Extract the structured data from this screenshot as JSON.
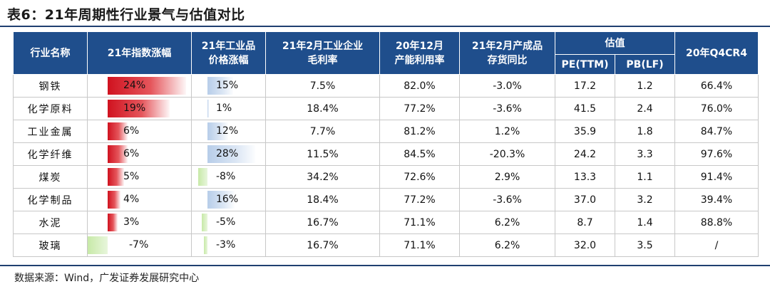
{
  "title": "表6：21年周期性行业景气与估值对比",
  "headers": {
    "industry": "行业名称",
    "index_change": "21年指数涨幅",
    "price_change_l1": "21年工业品",
    "price_change_l2": "价格涨幅",
    "margin_l1": "21年2月工业企业",
    "margin_l2": "毛利率",
    "capacity_l1": "20年12月",
    "capacity_l2": "产能利用率",
    "inventory_l1": "21年2月产成品",
    "inventory_l2": "存货同比",
    "valuation": "估值",
    "pe": "PE(TTM)",
    "pb": "PB(LF)",
    "cr4": "20年Q4CR4"
  },
  "rows": [
    {
      "name": "钢铁",
      "index": "24%",
      "index_v": 24,
      "price": "15%",
      "price_v": 15,
      "margin": "7.5%",
      "capacity": "82.0%",
      "inventory": "-3.0%",
      "pe": "17.2",
      "pb": "1.2",
      "cr4": "66.4%"
    },
    {
      "name": "化学原料",
      "index": "19%",
      "index_v": 19,
      "price": "1%",
      "price_v": 1,
      "margin": "18.4%",
      "capacity": "77.2%",
      "inventory": "-3.6%",
      "pe": "41.5",
      "pb": "2.4",
      "cr4": "76.0%"
    },
    {
      "name": "工业金属",
      "index": "6%",
      "index_v": 6,
      "price": "12%",
      "price_v": 12,
      "margin": "7.7%",
      "capacity": "81.2%",
      "inventory": "1.2%",
      "pe": "35.9",
      "pb": "1.8",
      "cr4": "84.7%"
    },
    {
      "name": "化学纤维",
      "index": "6%",
      "index_v": 6,
      "price": "28%",
      "price_v": 28,
      "margin": "11.5%",
      "capacity": "84.5%",
      "inventory": "-20.3%",
      "pe": "24.2",
      "pb": "3.3",
      "cr4": "97.6%"
    },
    {
      "name": "煤炭",
      "index": "5%",
      "index_v": 5,
      "price": "-8%",
      "price_v": -8,
      "margin": "34.2%",
      "capacity": "72.6%",
      "inventory": "2.9%",
      "pe": "13.3",
      "pb": "1.1",
      "cr4": "91.4%"
    },
    {
      "name": "化学制品",
      "index": "4%",
      "index_v": 4,
      "price": "16%",
      "price_v": 16,
      "margin": "18.4%",
      "capacity": "77.2%",
      "inventory": "-3.6%",
      "pe": "37.0",
      "pb": "3.2",
      "cr4": "39.4%"
    },
    {
      "name": "水泥",
      "index": "3%",
      "index_v": 3,
      "price": "-5%",
      "price_v": -5,
      "margin": "16.7%",
      "capacity": "71.1%",
      "inventory": "6.2%",
      "pe": "8.7",
      "pb": "1.4",
      "cr4": "88.8%"
    },
    {
      "name": "玻璃",
      "index": "-7%",
      "index_v": -7,
      "price": "-3%",
      "price_v": -3,
      "margin": "16.7%",
      "capacity": "71.1%",
      "inventory": "6.2%",
      "pe": "32.0",
      "pb": "3.5",
      "cr4": "/"
    }
  ],
  "footer": "数据来源：Wind，广发证券发展研究中心"
}
